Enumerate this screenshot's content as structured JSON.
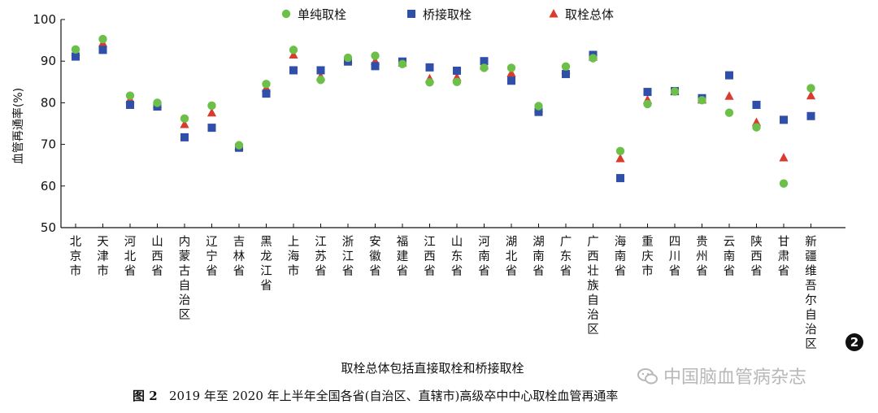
{
  "chart_data": {
    "type": "scatter",
    "title": "",
    "xlabel": "取栓总体包括直接取栓和桥接取栓",
    "ylabel": "血管再通率(%)",
    "ylim": [
      50,
      100
    ],
    "yticks": [
      50,
      60,
      70,
      80,
      90,
      100
    ],
    "grid": false,
    "legend_position": "top",
    "categories": [
      "北京市",
      "天津市",
      "河北省",
      "山西省",
      "内蒙古自治区",
      "辽宁省",
      "吉林省",
      "黑龙江省",
      "上海市",
      "江苏省",
      "浙江省",
      "安徽省",
      "福建省",
      "江西省",
      "山东省",
      "河南省",
      "湖北省",
      "湖南省",
      "广东省",
      "广西壮族自治区",
      "海南省",
      "重庆市",
      "四川省",
      "贵州省",
      "云南省",
      "陕西省",
      "甘肃省",
      "新疆维吾尔自治区"
    ],
    "series": [
      {
        "name": "单纯取栓",
        "marker": "circle",
        "color": "#6cc04a",
        "values": [
          92.8,
          95.3,
          81.7,
          80.0,
          76.2,
          79.3,
          69.8,
          84.5,
          92.7,
          85.5,
          90.8,
          91.3,
          89.3,
          84.9,
          85.0,
          88.4,
          88.4,
          79.2,
          88.7,
          90.7,
          68.4,
          79.7,
          82.7,
          80.6,
          77.6,
          74.1,
          60.6,
          83.5
        ]
      },
      {
        "name": "桥接取栓",
        "marker": "square",
        "color": "#2f4fa8",
        "values": [
          91.1,
          92.7,
          79.5,
          79.1,
          71.7,
          74.0,
          69.2,
          82.2,
          87.8,
          87.8,
          89.9,
          88.8,
          89.9,
          88.5,
          87.7,
          90.0,
          85.3,
          77.8,
          86.9,
          91.5,
          61.9,
          82.6,
          82.8,
          81.1,
          86.6,
          79.5,
          75.9,
          76.8
        ]
      },
      {
        "name": "取栓总体",
        "marker": "triangle",
        "color": "#d93b2e",
        "values": [
          92.2,
          94.3,
          80.8,
          79.6,
          74.8,
          77.6,
          69.5,
          83.5,
          91.5,
          86.3,
          90.4,
          90.0,
          89.6,
          85.8,
          86.1,
          88.9,
          87.1,
          78.6,
          87.8,
          91.0,
          66.6,
          80.7,
          82.7,
          80.7,
          81.6,
          75.3,
          66.8,
          81.7
        ]
      }
    ]
  },
  "caption": {
    "label": "图 2",
    "text": "2019 年至 2020 年上半年全国各省(自治区、直辖市)高级卒中中心取栓血管再通率"
  },
  "watermark": {
    "text": "中国脑血管病杂志",
    "icon": "wechat-icon"
  },
  "badge": {
    "text": "2"
  }
}
